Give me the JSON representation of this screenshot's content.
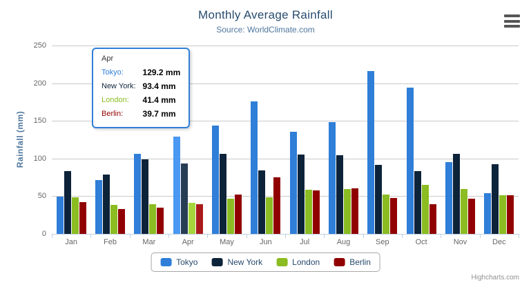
{
  "chart_data": {
    "type": "bar",
    "title": "Monthly Average Rainfall",
    "subtitle": "Source: WorldClimate.com",
    "categories": [
      "Jan",
      "Feb",
      "Mar",
      "Apr",
      "May",
      "Jun",
      "Jul",
      "Aug",
      "Sep",
      "Oct",
      "Nov",
      "Dec"
    ],
    "series": [
      {
        "name": "Tokyo",
        "color": "#2f7ed8",
        "hover_color": "#4a98f2",
        "values": [
          49.9,
          71.5,
          106.4,
          129.2,
          144.0,
          176.0,
          135.6,
          148.5,
          216.4,
          194.1,
          95.6,
          54.4
        ]
      },
      {
        "name": "New York",
        "color": "#0d233a",
        "hover_color": "#273d54",
        "values": [
          83.6,
          78.8,
          98.5,
          93.4,
          106.0,
          84.5,
          105.0,
          104.3,
          91.2,
          83.5,
          106.6,
          92.3
        ]
      },
      {
        "name": "London",
        "color": "#8bbc21",
        "hover_color": "#a5d63b",
        "values": [
          48.9,
          38.8,
          39.3,
          41.4,
          47.0,
          48.3,
          59.0,
          59.6,
          52.4,
          65.2,
          59.3,
          51.2
        ]
      },
      {
        "name": "Berlin",
        "color": "#910000",
        "hover_color": "#ab1a1a",
        "values": [
          42.4,
          33.2,
          34.5,
          39.7,
          52.6,
          75.5,
          57.4,
          60.4,
          47.6,
          39.1,
          46.8,
          51.1
        ]
      }
    ],
    "xlabel": "",
    "ylabel": "Rainfall (mm)",
    "ylim": [
      0,
      250
    ],
    "yticks": [
      0,
      50,
      100,
      150,
      200,
      250
    ],
    "grid": true,
    "grid_color": "#c9c9c9",
    "axis_line_color": "#c0d0e0",
    "legend_position": "bottom",
    "hovered_category": "Apr",
    "hovered_category_index": 3
  },
  "tooltip": {
    "header": "Apr",
    "border_color": "#2f7ed8",
    "rows": [
      {
        "label": "Tokyo",
        "value": "129.2 mm",
        "color": "#2f7ed8"
      },
      {
        "label": "New York",
        "value": "93.4 mm",
        "color": "#0d233a"
      },
      {
        "label": "London",
        "value": "41.4 mm",
        "color": "#8bbc21"
      },
      {
        "label": "Berlin",
        "value": "39.7 mm",
        "color": "#910000"
      }
    ]
  },
  "credits": {
    "label": "Highcharts.com"
  }
}
